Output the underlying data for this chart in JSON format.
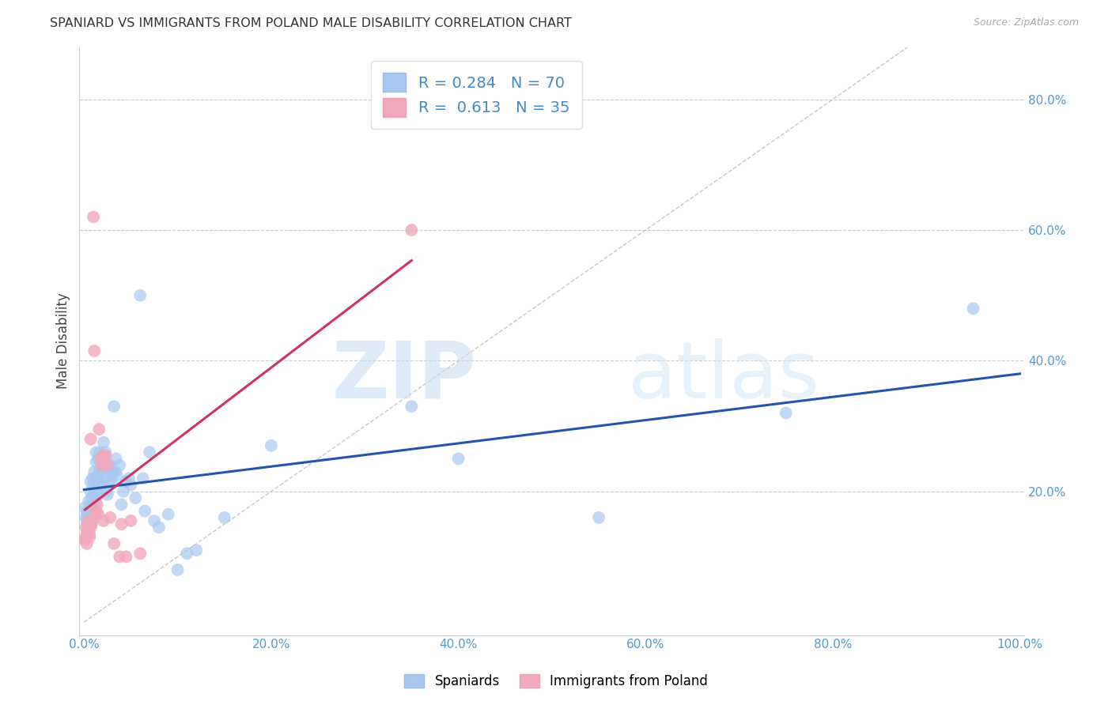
{
  "title": "SPANIARD VS IMMIGRANTS FROM POLAND MALE DISABILITY CORRELATION CHART",
  "source": "Source: ZipAtlas.com",
  "ylabel": "Male Disability",
  "legend_label_1": "Spaniards",
  "legend_label_2": "Immigrants from Poland",
  "R1": 0.284,
  "N1": 70,
  "R2": 0.613,
  "N2": 35,
  "color_blue": "#a8c8f0",
  "color_pink": "#f0a8bc",
  "line_color_blue": "#2255aa",
  "line_color_pink": "#cc3366",
  "watermark_zip": "ZIP",
  "watermark_atlas": "atlas",
  "spaniards_x": [
    0.001,
    0.002,
    0.003,
    0.003,
    0.004,
    0.005,
    0.005,
    0.006,
    0.007,
    0.007,
    0.008,
    0.008,
    0.009,
    0.009,
    0.01,
    0.01,
    0.011,
    0.011,
    0.012,
    0.012,
    0.013,
    0.013,
    0.014,
    0.015,
    0.015,
    0.016,
    0.016,
    0.017,
    0.018,
    0.018,
    0.02,
    0.021,
    0.021,
    0.022,
    0.023,
    0.024,
    0.025,
    0.026,
    0.027,
    0.028,
    0.03,
    0.031,
    0.032,
    0.033,
    0.034,
    0.035,
    0.038,
    0.04,
    0.042,
    0.045,
    0.048,
    0.05,
    0.055,
    0.06,
    0.063,
    0.065,
    0.07,
    0.075,
    0.08,
    0.09,
    0.1,
    0.11,
    0.12,
    0.15,
    0.2,
    0.35,
    0.4,
    0.55,
    0.75,
    0.95
  ],
  "spaniards_y": [
    0.175,
    0.16,
    0.155,
    0.165,
    0.17,
    0.145,
    0.185,
    0.135,
    0.2,
    0.215,
    0.19,
    0.18,
    0.22,
    0.175,
    0.165,
    0.21,
    0.195,
    0.23,
    0.2,
    0.185,
    0.245,
    0.26,
    0.22,
    0.25,
    0.195,
    0.215,
    0.23,
    0.26,
    0.24,
    0.21,
    0.23,
    0.275,
    0.245,
    0.22,
    0.26,
    0.2,
    0.195,
    0.235,
    0.215,
    0.24,
    0.215,
    0.23,
    0.33,
    0.23,
    0.25,
    0.225,
    0.24,
    0.18,
    0.2,
    0.215,
    0.22,
    0.21,
    0.19,
    0.5,
    0.22,
    0.17,
    0.26,
    0.155,
    0.145,
    0.165,
    0.08,
    0.105,
    0.11,
    0.16,
    0.27,
    0.33,
    0.25,
    0.16,
    0.32,
    0.48
  ],
  "poland_x": [
    0.001,
    0.002,
    0.002,
    0.003,
    0.003,
    0.004,
    0.004,
    0.005,
    0.005,
    0.006,
    0.007,
    0.007,
    0.008,
    0.009,
    0.01,
    0.011,
    0.012,
    0.013,
    0.014,
    0.015,
    0.016,
    0.018,
    0.019,
    0.02,
    0.021,
    0.023,
    0.025,
    0.028,
    0.032,
    0.038,
    0.04,
    0.045,
    0.05,
    0.06,
    0.35
  ],
  "poland_y": [
    0.125,
    0.13,
    0.145,
    0.12,
    0.135,
    0.14,
    0.15,
    0.14,
    0.155,
    0.13,
    0.145,
    0.28,
    0.15,
    0.155,
    0.62,
    0.415,
    0.165,
    0.17,
    0.18,
    0.165,
    0.295,
    0.25,
    0.24,
    0.255,
    0.155,
    0.255,
    0.24,
    0.16,
    0.12,
    0.1,
    0.15,
    0.1,
    0.155,
    0.105,
    0.6
  ],
  "xlim": [
    -0.005,
    1.005
  ],
  "ylim": [
    -0.02,
    0.88
  ],
  "xticks": [
    0.0,
    0.2,
    0.4,
    0.6,
    0.8,
    1.0
  ],
  "yticks": [
    0.2,
    0.4,
    0.6,
    0.8
  ],
  "xticklabels": [
    "0.0%",
    "20.0%",
    "40.0%",
    "60.0%",
    "80.0%",
    "100.0%"
  ],
  "yticklabels": [
    "20.0%",
    "40.0%",
    "60.0%",
    "80.0%"
  ],
  "background_color": "#ffffff",
  "grid_color": "#cccccc"
}
